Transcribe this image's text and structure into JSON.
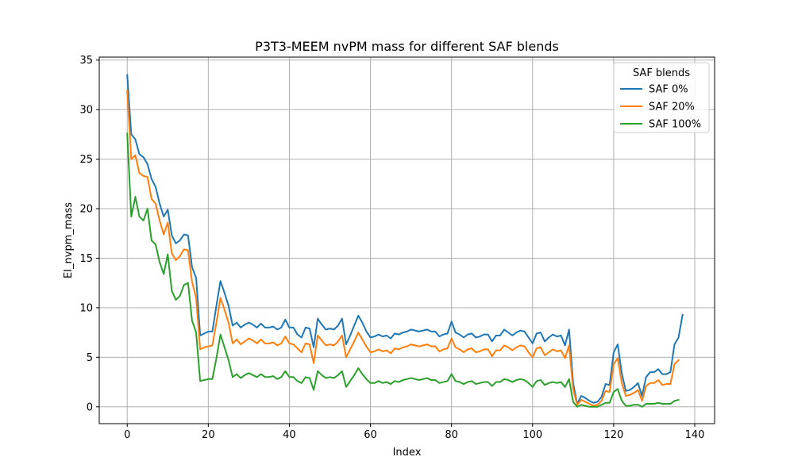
{
  "chart_data": {
    "type": "line",
    "title": "P3T3-MEEM nvPM mass for different SAF blends",
    "xlabel": "Index",
    "ylabel": "EI_nvpm_mass",
    "xlim": [
      -6.9,
      144.9
    ],
    "ylim": [
      -1.7,
      35.3
    ],
    "xticks": [
      0,
      20,
      40,
      60,
      80,
      100,
      120,
      140
    ],
    "yticks": [
      0,
      5,
      10,
      15,
      20,
      25,
      30,
      35
    ],
    "grid": true,
    "legend": {
      "title": "SAF blends",
      "placement": "top-right"
    },
    "colors": [
      "#1f77b4",
      "#ff7f0e",
      "#2ca02c"
    ],
    "series": [
      {
        "name": "SAF 0%",
        "color": "#1f77b4",
        "y": [
          33.5,
          27.5,
          27.0,
          25.5,
          25.2,
          24.5,
          23.0,
          22.2,
          20.5,
          19.2,
          19.9,
          17.3,
          16.5,
          16.8,
          17.4,
          17.3,
          14.1,
          13.0,
          7.2,
          7.4,
          7.6,
          7.6,
          10.2,
          12.7,
          11.5,
          10.2,
          8.2,
          8.5,
          8.0,
          8.3,
          8.5,
          8.3,
          8.0,
          8.4,
          8.0,
          8.0,
          8.1,
          7.8,
          8.0,
          8.8,
          8.0,
          8.0,
          7.3,
          7.0,
          8.0,
          7.9,
          6.0,
          8.9,
          8.3,
          7.8,
          7.9,
          7.8,
          8.2,
          8.9,
          6.3,
          7.2,
          8.2,
          9.2,
          8.5,
          7.6,
          7.0,
          7.1,
          7.3,
          7.1,
          7.2,
          6.9,
          7.4,
          7.3,
          7.5,
          7.6,
          7.8,
          7.7,
          7.6,
          7.7,
          7.8,
          7.6,
          7.6,
          7.1,
          7.3,
          7.4,
          8.6,
          7.5,
          7.3,
          7.0,
          7.3,
          7.4,
          7.0,
          7.1,
          7.3,
          7.3,
          6.6,
          7.2,
          7.2,
          7.8,
          7.5,
          7.2,
          7.5,
          7.7,
          7.6,
          7.0,
          6.4,
          7.4,
          7.5,
          6.6,
          7.0,
          7.3,
          7.1,
          7.2,
          6.2,
          7.8,
          2.4,
          0.3,
          1.1,
          0.9,
          0.6,
          0.4,
          0.5,
          1.0,
          2.3,
          2.2,
          5.5,
          6.3,
          3.4,
          1.6,
          1.7,
          2.0,
          2.4,
          1.1,
          3.0,
          3.5,
          3.5,
          3.8,
          3.3,
          3.3,
          3.5,
          6.3,
          7.0,
          9.3
        ]
      },
      {
        "name": "SAF 20%",
        "color": "#ff7f0e",
        "y": [
          31.9,
          25.0,
          25.4,
          23.6,
          23.3,
          23.2,
          21.0,
          20.5,
          18.8,
          17.4,
          18.6,
          15.5,
          14.8,
          15.2,
          15.9,
          15.8,
          12.6,
          11.0,
          5.8,
          6.0,
          6.1,
          6.2,
          8.5,
          11.0,
          9.8,
          8.5,
          6.4,
          6.8,
          6.3,
          6.6,
          6.9,
          6.7,
          6.4,
          6.8,
          6.4,
          6.4,
          6.5,
          6.2,
          6.4,
          7.1,
          6.4,
          6.3,
          5.9,
          5.5,
          6.4,
          6.3,
          4.4,
          7.2,
          6.7,
          6.2,
          6.3,
          6.2,
          6.6,
          7.2,
          5.0,
          5.8,
          6.6,
          7.5,
          6.8,
          6.1,
          5.5,
          5.6,
          5.8,
          5.6,
          5.7,
          5.4,
          5.9,
          5.8,
          6.0,
          6.1,
          6.3,
          6.2,
          6.1,
          6.2,
          6.3,
          6.1,
          6.1,
          5.6,
          5.8,
          5.9,
          6.9,
          6.0,
          5.8,
          5.5,
          5.8,
          5.9,
          5.5,
          5.6,
          5.8,
          5.8,
          5.1,
          5.7,
          5.7,
          6.2,
          6.0,
          5.7,
          6.0,
          6.2,
          6.1,
          5.5,
          5.0,
          5.9,
          6.0,
          5.2,
          5.5,
          5.8,
          5.6,
          5.7,
          4.9,
          6.2,
          1.8,
          0.2,
          0.7,
          0.5,
          0.3,
          0.1,
          0.2,
          0.6,
          1.6,
          1.5,
          4.3,
          4.9,
          2.4,
          1.1,
          1.2,
          1.4,
          1.7,
          0.6,
          2.1,
          2.4,
          2.4,
          2.7,
          2.2,
          2.3,
          2.3,
          4.3,
          4.7
        ]
      },
      {
        "name": "SAF 100%",
        "color": "#2ca02c",
        "y": [
          27.6,
          19.2,
          21.2,
          19.2,
          18.8,
          20.0,
          16.8,
          16.4,
          14.6,
          13.4,
          15.4,
          11.7,
          10.8,
          11.2,
          12.3,
          12.5,
          8.7,
          7.5,
          2.6,
          2.7,
          2.8,
          2.8,
          4.9,
          7.3,
          6.0,
          4.7,
          3.0,
          3.3,
          2.9,
          3.2,
          3.4,
          3.2,
          3.0,
          3.3,
          3.0,
          3.0,
          3.1,
          2.8,
          3.0,
          3.6,
          3.0,
          3.0,
          2.6,
          2.4,
          3.0,
          2.9,
          1.7,
          3.6,
          3.2,
          2.9,
          3.0,
          2.9,
          3.2,
          3.6,
          2.0,
          2.6,
          3.2,
          3.9,
          3.3,
          2.8,
          2.4,
          2.4,
          2.6,
          2.4,
          2.5,
          2.3,
          2.6,
          2.5,
          2.7,
          2.8,
          2.9,
          2.8,
          2.7,
          2.8,
          2.9,
          2.7,
          2.7,
          2.4,
          2.5,
          2.6,
          3.3,
          2.6,
          2.5,
          2.3,
          2.5,
          2.6,
          2.3,
          2.4,
          2.5,
          2.5,
          2.1,
          2.5,
          2.5,
          2.8,
          2.7,
          2.5,
          2.7,
          2.8,
          2.7,
          2.4,
          2.0,
          2.6,
          2.7,
          2.2,
          2.4,
          2.5,
          2.4,
          2.5,
          2.0,
          2.8,
          0.5,
          0.0,
          0.2,
          0.1,
          0.0,
          0.0,
          0.0,
          0.2,
          0.4,
          0.4,
          1.5,
          1.8,
          0.6,
          0.1,
          0.1,
          0.2,
          0.2,
          0.0,
          0.3,
          0.3,
          0.3,
          0.4,
          0.3,
          0.3,
          0.3,
          0.6,
          0.7
        ]
      }
    ]
  }
}
